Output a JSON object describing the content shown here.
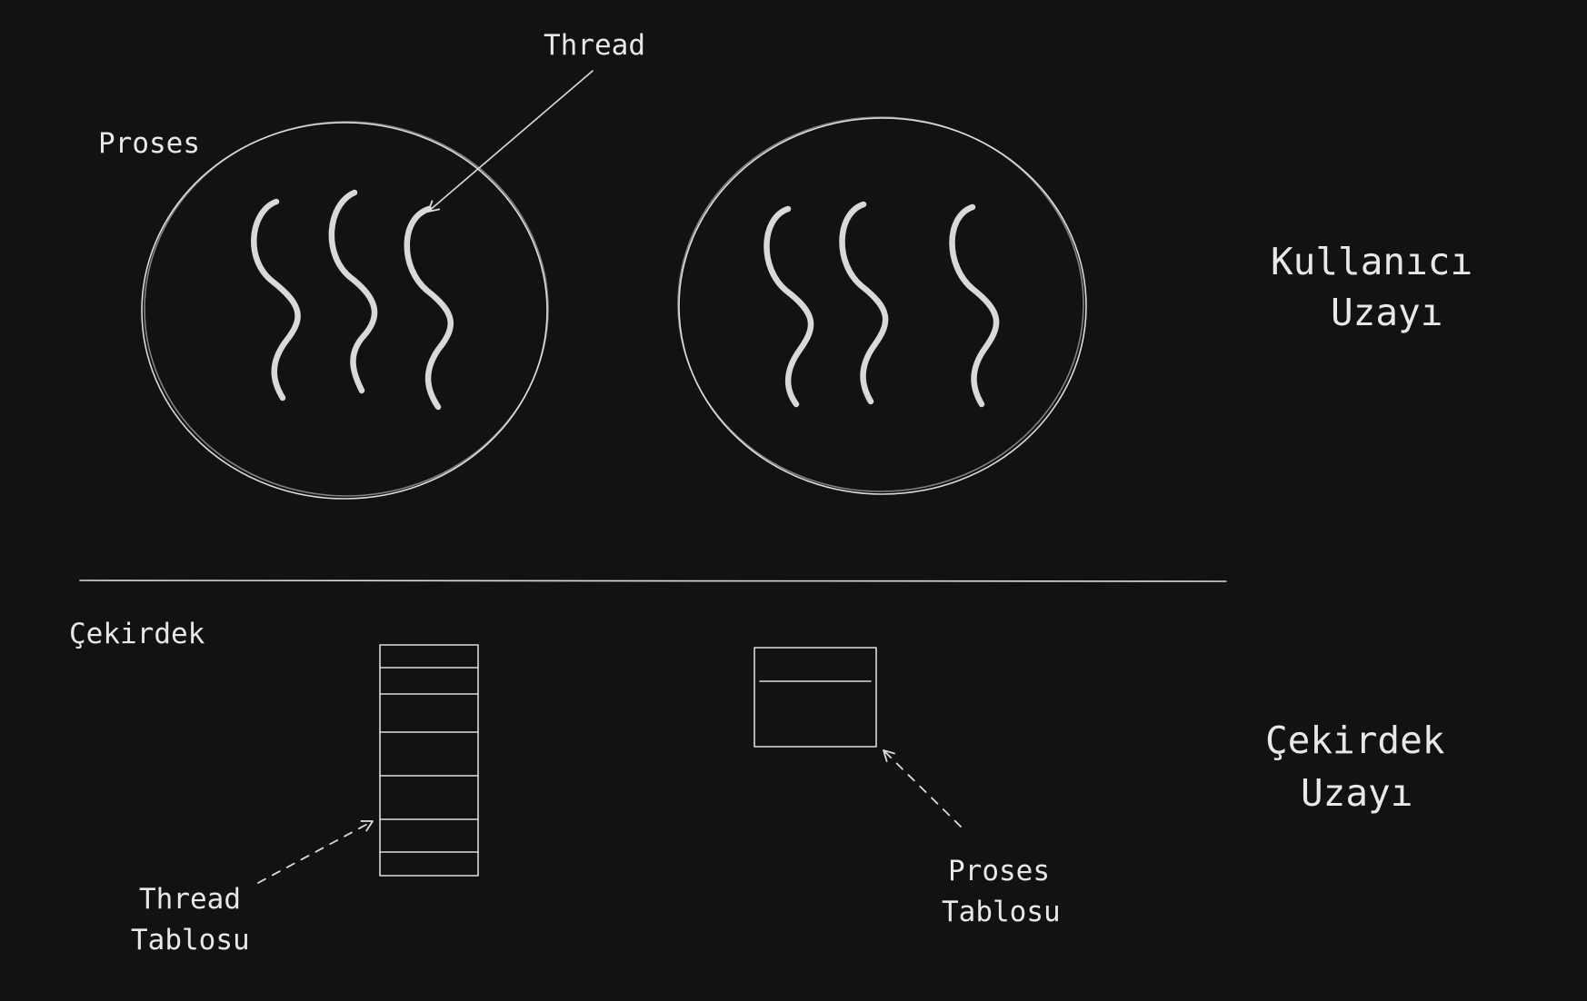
{
  "colors": {
    "background": "#121212",
    "stroke": "#dcdcdc",
    "text": "#e8e8e8"
  },
  "labels": {
    "thread": "Thread",
    "proses": "Proses",
    "cekirdek": "Çekirdek",
    "user_space_line1": "Kullanıcı",
    "user_space_line2": "Uzayı",
    "kernel_space_line1": "Çekirdek",
    "kernel_space_line2": "Uzayı",
    "thread_table_line1": "Thread",
    "thread_table_line2": "Tablosu",
    "process_table_line1": "Proses",
    "process_table_line2": "Tablosu"
  },
  "processes": [
    {
      "threads": 3
    },
    {
      "threads": 3
    }
  ],
  "thread_table": {
    "rows": 7
  },
  "process_table": {
    "rows": 2
  }
}
